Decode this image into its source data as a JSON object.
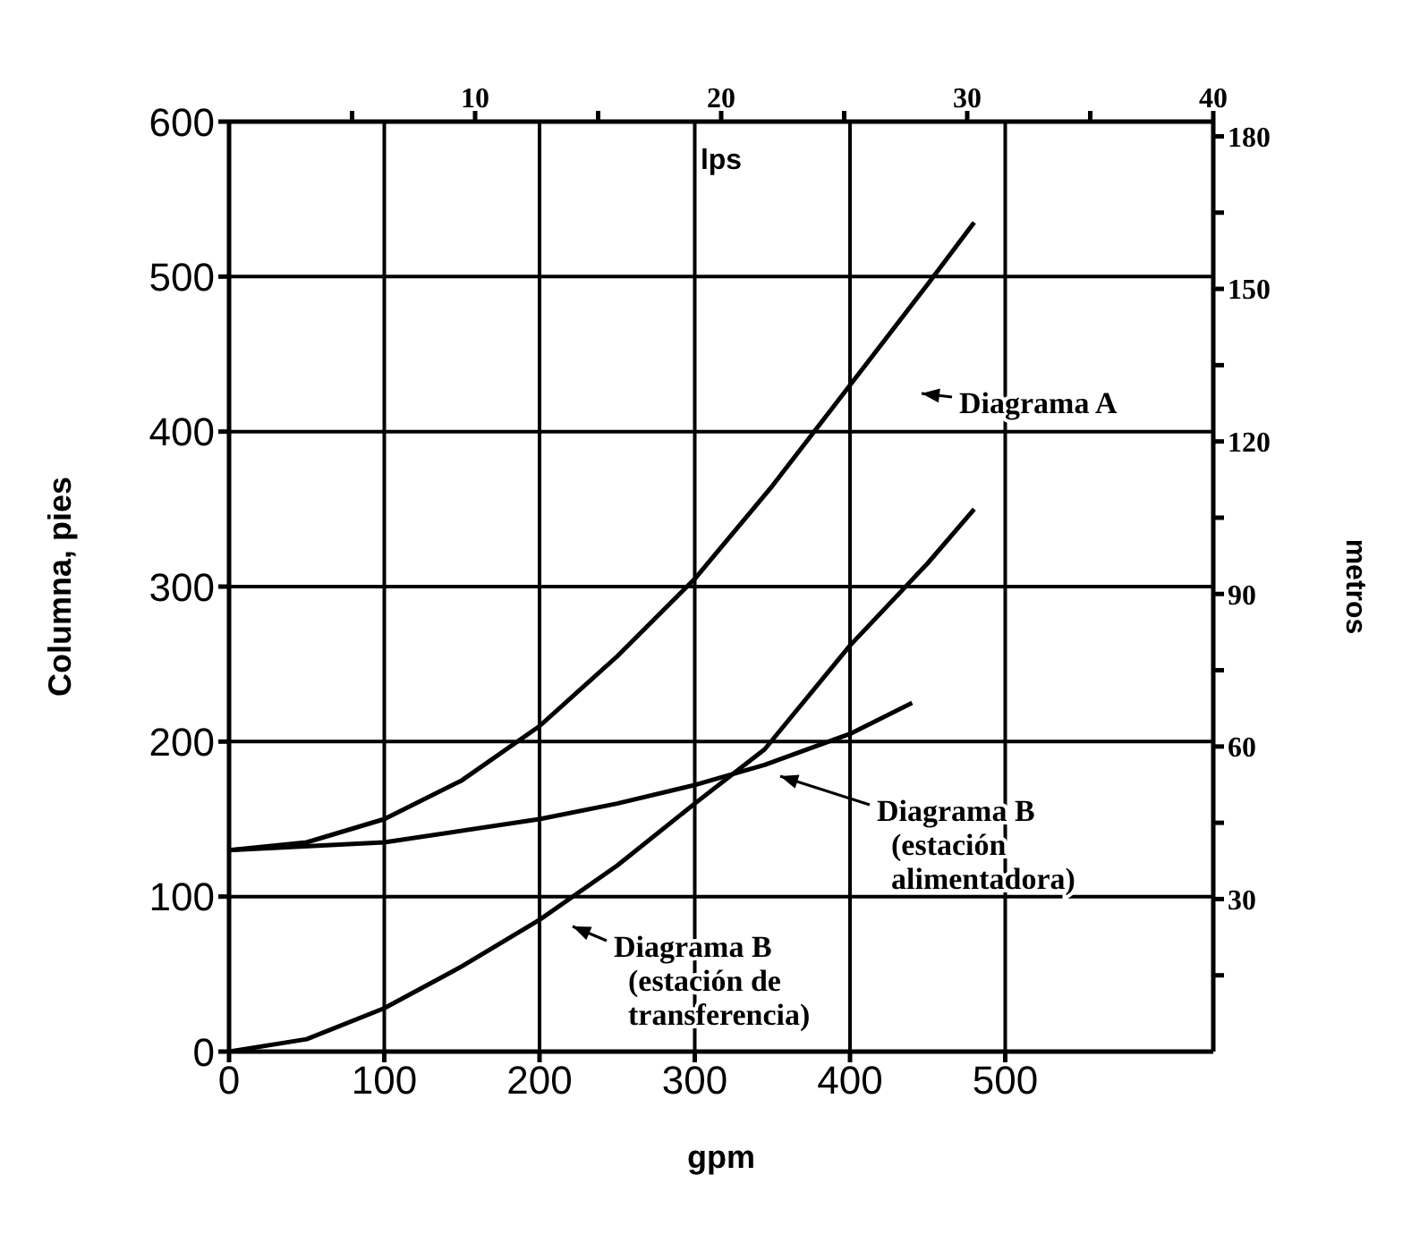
{
  "chart_data": {
    "type": "line",
    "xlabel": "gpm",
    "x2label": "lps",
    "ylabel": "Columna, pies",
    "y2label": "metros",
    "xlim": [
      0,
      634
    ],
    "xticks": [
      0,
      100,
      200,
      300,
      400,
      500
    ],
    "x2lim": [
      0,
      40
    ],
    "x2ticks": [
      {
        "value": 5,
        "label": null
      },
      10,
      {
        "value": 15,
        "label": null
      },
      20,
      {
        "value": 25,
        "label": null
      },
      30,
      {
        "value": 35,
        "label": null
      },
      40
    ],
    "ylim": [
      0,
      600
    ],
    "yticks": [
      0,
      100,
      200,
      300,
      400,
      500,
      600
    ],
    "y2lim": [
      0,
      182.9
    ],
    "y2ticks": [
      {
        "value": 15,
        "label": null
      },
      30,
      {
        "value": 45,
        "label": null
      },
      60,
      {
        "value": 75,
        "label": null
      },
      90,
      {
        "value": 105,
        "label": null
      },
      120,
      {
        "value": 135,
        "label": null
      },
      150,
      {
        "value": 165,
        "label": null
      },
      180
    ],
    "grid": true,
    "legend": false,
    "marker": "none",
    "line_style": "solid",
    "series": [
      {
        "color": "#000000",
        "x": [
          0,
          50,
          100,
          150,
          200,
          250,
          300,
          350,
          400,
          450,
          480
        ],
        "values": [
          130,
          135,
          150,
          175,
          210,
          255,
          305,
          365,
          430,
          495,
          535
        ]
      },
      {
        "color": "#000000",
        "x": [
          0,
          100,
          200,
          250,
          300,
          345,
          400,
          440
        ],
        "values": [
          130,
          135,
          150,
          160,
          172,
          185,
          205,
          225
        ]
      },
      {
        "color": "#000000",
        "x": [
          0,
          50,
          100,
          150,
          200,
          250,
          300,
          345,
          400,
          450,
          480
        ],
        "values": [
          0,
          8,
          28,
          55,
          85,
          120,
          160,
          195,
          262,
          315,
          350
        ]
      }
    ],
    "annotations": [
      "Diagrama A",
      "Diagrama B\n(estación\nalimentadora)",
      "Diagrama B\n(estación de\ntransferencia)"
    ]
  }
}
